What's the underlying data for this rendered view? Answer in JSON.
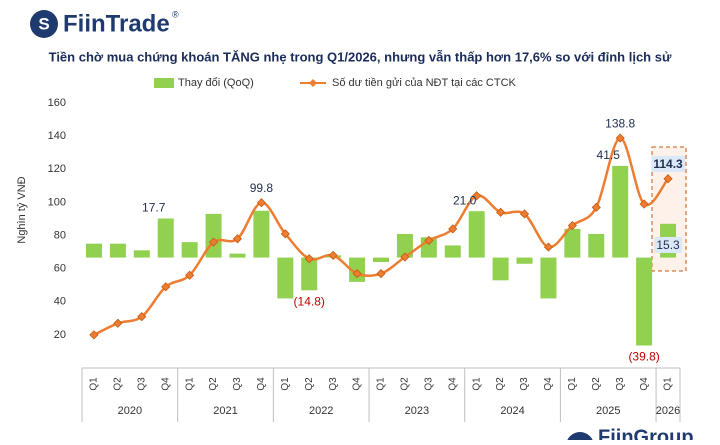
{
  "brand": "FiinTrade",
  "brand_mark": "®",
  "footer_logo": "FiinGroup",
  "chart_data": {
    "type": "bar-line",
    "title": "Tiền chờ mua chứng khoán TĂNG nhẹ trong Q1/2026, nhưng vẫn thấp hơn 17,6% so với đỉnh lịch sử",
    "y_label": "Nghìn tỷ VNĐ",
    "groups": [
      {
        "name": "2020",
        "categories": [
          "Q1",
          "Q2",
          "Q3",
          "Q4"
        ]
      },
      {
        "name": "2021",
        "categories": [
          "Q1",
          "Q2",
          "Q3",
          "Q4"
        ]
      },
      {
        "name": "2022",
        "categories": [
          "Q1",
          "Q2",
          "Q3",
          "Q4"
        ]
      },
      {
        "name": "2023",
        "categories": [
          "Q1",
          "Q2",
          "Q3",
          "Q4"
        ]
      },
      {
        "name": "2024",
        "categories": [
          "Q1",
          "Q2",
          "Q3",
          "Q4"
        ]
      },
      {
        "name": "2025",
        "categories": [
          "Q1",
          "Q2",
          "Q3",
          "Q4"
        ]
      },
      {
        "name": "2026",
        "categories": [
          "Q1"
        ]
      }
    ],
    "ylim": [
      0,
      160
    ],
    "yticks": [
      20,
      40,
      60,
      80,
      100,
      120,
      140,
      160
    ],
    "y2lim": [
      -50,
      70
    ],
    "series": [
      {
        "name": "Thay đổi (QoQ)",
        "type": "bar",
        "axis": "y2",
        "color": "#92d050",
        "values": [
          6.3,
          6.3,
          3.3,
          17.7,
          7,
          19.8,
          1.8,
          21.2,
          -18.5,
          -14.8,
          1,
          -11,
          -2,
          10.7,
          9.2,
          5.5,
          21.0,
          -10.3,
          -2.8,
          -18.5,
          13,
          10.7,
          41.5,
          -39.8,
          15.3
        ],
        "value_labels": [
          null,
          null,
          null,
          "17.7",
          null,
          null,
          null,
          null,
          null,
          "(14.8)",
          null,
          null,
          null,
          null,
          null,
          null,
          "21.0",
          null,
          null,
          null,
          null,
          null,
          "41.5",
          "(39.8)",
          "15.3"
        ]
      },
      {
        "name": "Số dư tiền gửi của NĐT tại các CTCK",
        "type": "line",
        "color": "#ed7d31",
        "values": [
          20,
          27,
          31,
          49,
          56,
          76,
          78,
          99.8,
          81,
          66,
          68,
          57,
          57,
          67,
          77,
          84,
          104,
          94,
          93,
          73,
          86,
          97,
          138.8,
          99,
          114.3
        ],
        "value_labels": [
          null,
          null,
          null,
          null,
          null,
          null,
          null,
          "99.8",
          null,
          null,
          null,
          null,
          null,
          null,
          null,
          null,
          null,
          null,
          null,
          null,
          null,
          null,
          "138.8",
          null,
          "114.3"
        ]
      }
    ]
  }
}
